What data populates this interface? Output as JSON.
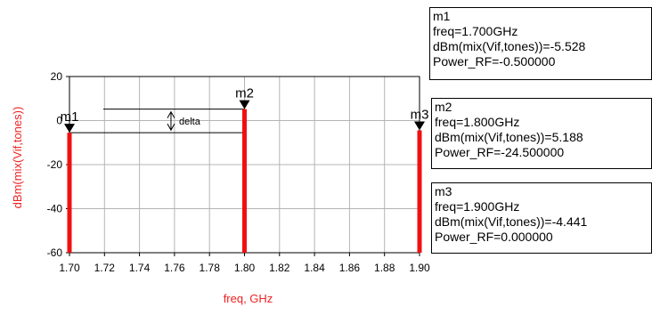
{
  "chart_data": {
    "type": "bar",
    "x": [
      1.7,
      1.8,
      1.9
    ],
    "values": [
      -5.528,
      5.188,
      -4.441
    ],
    "xlabel": "freq, GHz",
    "ylabel": "dBm(mix(Vif,tones))",
    "xlim": [
      1.7,
      1.9
    ],
    "ylim": [
      -60,
      20
    ],
    "xticks": [
      "1.70",
      "1.72",
      "1.74",
      "1.76",
      "1.78",
      "1.80",
      "1.82",
      "1.84",
      "1.86",
      "1.88",
      "1.90"
    ],
    "yticks": [
      "20",
      "0",
      "-20",
      "-40",
      "-60"
    ],
    "grid": true,
    "bar_color": "#ee1111",
    "axis_label_color": "#ee2222",
    "marker_names": [
      "m1",
      "m2",
      "m3"
    ],
    "delta_label": "delta"
  },
  "markers": [
    {
      "name": "m1",
      "freq": "freq=1.700GHz",
      "dbm": "dBm(mix(Vif,tones))=-5.528",
      "power": "Power_RF=-0.500000"
    },
    {
      "name": "m2",
      "freq": "freq=1.800GHz",
      "dbm": "dBm(mix(Vif,tones))=5.188",
      "power": "Power_RF=-24.500000"
    },
    {
      "name": "m3",
      "freq": "freq=1.900GHz",
      "dbm": "dBm(mix(Vif,tones))=-4.441",
      "power": "Power_RF=0.000000"
    }
  ]
}
